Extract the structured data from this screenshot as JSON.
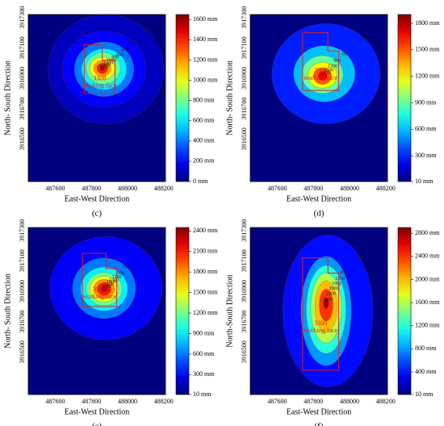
{
  "chart_data": [
    {
      "type": "contour",
      "panel_label": "(c)",
      "xlabel": "East-West Direction",
      "ylabel": "North- South Direction",
      "xlim": [
        487450,
        488210
      ],
      "ylim": [
        3916220,
        3917320
      ],
      "xticks": [
        487600,
        487800,
        488000,
        488200
      ],
      "yticks": [
        3916500,
        3916700,
        3916900,
        3917100,
        3917300
      ],
      "clim": [
        0,
        1650
      ],
      "cticks": [
        {
          "value": 0,
          "label": "0 mm"
        },
        {
          "value": 200,
          "label": "200 mm"
        },
        {
          "value": 400,
          "label": "400 mm"
        },
        {
          "value": 600,
          "label": "600 mm"
        },
        {
          "value": 800,
          "label": "800 mm"
        },
        {
          "value": 1000,
          "label": "1000 mm"
        },
        {
          "value": 1200,
          "label": "1200 mm"
        },
        {
          "value": 1400,
          "label": "1400 mm"
        },
        {
          "value": 1600,
          "label": "1600 mm"
        }
      ],
      "contours": [
        {
          "level": 100,
          "cx": 487880,
          "cy": 3916960,
          "rx": 320,
          "ry": 360
        },
        {
          "level": 200,
          "cx": 487870,
          "cy": 3916960,
          "rx": 230,
          "ry": 250
        },
        {
          "level": 400,
          "cx": 487870,
          "cy": 3916960,
          "rx": 165,
          "ry": 180
        },
        {
          "level": 600,
          "cx": 487870,
          "cy": 3916960,
          "rx": 125,
          "ry": 135
        },
        {
          "level": 800,
          "cx": 487865,
          "cy": 3916965,
          "rx": 95,
          "ry": 105
        },
        {
          "level": 1000,
          "cx": 487860,
          "cy": 3916965,
          "rx": 70,
          "ry": 75
        },
        {
          "level": 1200,
          "cx": 487860,
          "cy": 3916965,
          "rx": 48,
          "ry": 52
        },
        {
          "level": 1400,
          "cx": 487860,
          "cy": 3916965,
          "rx": 30,
          "ry": 34
        },
        {
          "level": 1600,
          "cx": 487860,
          "cy": 3916965,
          "rx": 13,
          "ry": 15
        }
      ],
      "working_face": {
        "label_lines": [
          "3308",
          "working face"
        ],
        "x": [
          487760,
          487860,
          487860,
          487930,
          487930,
          487760
        ],
        "y": [
          3917120,
          3917120,
          3917020,
          3917020,
          3916800,
          3916800
        ]
      }
    },
    {
      "type": "contour",
      "panel_label": "(d)",
      "xlabel": "East-West Direction",
      "ylabel": "North- South Direction",
      "xlim": [
        487450,
        488210
      ],
      "ylim": [
        3916220,
        3917320
      ],
      "xticks": [
        487600,
        487800,
        488000,
        488200
      ],
      "yticks": [
        3916500,
        3916700,
        3916900,
        3917100,
        3917300
      ],
      "clim": [
        10,
        1900
      ],
      "cticks": [
        {
          "value": 10,
          "label": "10 mm"
        },
        {
          "value": 300,
          "label": "300 mm"
        },
        {
          "value": 600,
          "label": "600 mm"
        },
        {
          "value": 900,
          "label": "900 mm"
        },
        {
          "value": 1200,
          "label": "1200 mm"
        },
        {
          "value": 1500,
          "label": "1500 mm"
        },
        {
          "value": 1800,
          "label": "1800 mm"
        }
      ],
      "contours": [
        {
          "level": 300,
          "cx": 487870,
          "cy": 3916930,
          "rx": 300,
          "ry": 330
        },
        {
          "level": 600,
          "cx": 487860,
          "cy": 3916930,
          "rx": 170,
          "ry": 185
        },
        {
          "level": 900,
          "cx": 487850,
          "cy": 3916925,
          "rx": 115,
          "ry": 125
        },
        {
          "level": 1200,
          "cx": 487850,
          "cy": 3916920,
          "rx": 80,
          "ry": 85
        },
        {
          "level": 1500,
          "cx": 487850,
          "cy": 3916915,
          "rx": 50,
          "ry": 55
        },
        {
          "level": 1700,
          "cx": 487850,
          "cy": 3916915,
          "rx": 25,
          "ry": 28
        }
      ],
      "working_face": {
        "label_lines": [
          "3308",
          "working face"
        ],
        "x": [
          487740,
          487880,
          487880,
          487940,
          487940,
          487740
        ],
        "y": [
          3917200,
          3917200,
          3917080,
          3917080,
          3916820,
          3916820
        ]
      }
    },
    {
      "type": "contour",
      "panel_label": "(e)",
      "xlabel": "East-West Direction",
      "ylabel": "North- South Direction",
      "xlim": [
        487450,
        488210
      ],
      "ylim": [
        3916220,
        3917320
      ],
      "xticks": [
        487600,
        487800,
        488000,
        488200
      ],
      "yticks": [
        3916500,
        3916700,
        3916900,
        3917100,
        3917300
      ],
      "clim": [
        10,
        2450
      ],
      "cticks": [
        {
          "value": 10,
          "label": "10 mm"
        },
        {
          "value": 300,
          "label": "300 mm"
        },
        {
          "value": 600,
          "label": "600 mm"
        },
        {
          "value": 900,
          "label": "900 mm"
        },
        {
          "value": 1200,
          "label": "1200 mm"
        },
        {
          "value": 1500,
          "label": "1500 mm"
        },
        {
          "value": 1800,
          "label": "1800 mm"
        },
        {
          "value": 2100,
          "label": "2100 mm"
        },
        {
          "value": 2400,
          "label": "2400 mm"
        }
      ],
      "contours": [
        {
          "level": 300,
          "cx": 487880,
          "cy": 3916920,
          "rx": 310,
          "ry": 340
        },
        {
          "level": 600,
          "cx": 487870,
          "cy": 3916920,
          "rx": 175,
          "ry": 200
        },
        {
          "level": 900,
          "cx": 487870,
          "cy": 3916915,
          "rx": 130,
          "ry": 145
        },
        {
          "level": 1200,
          "cx": 487870,
          "cy": 3916915,
          "rx": 100,
          "ry": 110
        },
        {
          "level": 1500,
          "cx": 487870,
          "cy": 3916915,
          "rx": 78,
          "ry": 85
        },
        {
          "level": 1800,
          "cx": 487870,
          "cy": 3916915,
          "rx": 58,
          "ry": 64
        },
        {
          "level": 2100,
          "cx": 487870,
          "cy": 3916915,
          "rx": 38,
          "ry": 42
        },
        {
          "level": 2400,
          "cx": 487870,
          "cy": 3916915,
          "rx": 16,
          "ry": 18
        }
      ],
      "working_face": {
        "label_lines": [
          "3308",
          "working face"
        ],
        "x": [
          487750,
          487880,
          487880,
          487940,
          487940,
          487750
        ],
        "y": [
          3917150,
          3917150,
          3917050,
          3917050,
          3916800,
          3916800
        ]
      }
    },
    {
      "type": "contour",
      "panel_label": "(f)",
      "xlabel": "East-West Direction",
      "ylabel": "North-South Direction",
      "xlim": [
        487450,
        488210
      ],
      "ylim": [
        3916220,
        3917320
      ],
      "xticks": [
        487600,
        487800,
        488000,
        488200
      ],
      "yticks": [
        3916500,
        3916700,
        3916900,
        3917100,
        3917300
      ],
      "clim": [
        10,
        2900
      ],
      "cticks": [
        {
          "value": 10,
          "label": "10 mm"
        },
        {
          "value": 400,
          "label": "400 mm"
        },
        {
          "value": 800,
          "label": "800 mm"
        },
        {
          "value": 1200,
          "label": "1200 mm"
        },
        {
          "value": 1600,
          "label": "1600 mm"
        },
        {
          "value": 2000,
          "label": "2000 mm"
        },
        {
          "value": 2400,
          "label": "2400 mm"
        },
        {
          "value": 2800,
          "label": "2800 mm"
        }
      ],
      "contours": [
        {
          "level": 400,
          "cx": 487880,
          "cy": 3916770,
          "rx": 250,
          "ry": 500
        },
        {
          "level": 800,
          "cx": 487870,
          "cy": 3916770,
          "rx": 140,
          "ry": 360
        },
        {
          "level": 1200,
          "cx": 487870,
          "cy": 3916780,
          "rx": 110,
          "ry": 290
        },
        {
          "level": 1600,
          "cx": 487870,
          "cy": 3916790,
          "rx": 85,
          "ry": 230
        },
        {
          "level": 2000,
          "cx": 487870,
          "cy": 3916800,
          "rx": 62,
          "ry": 170
        },
        {
          "level": 2400,
          "cx": 487870,
          "cy": 3916810,
          "rx": 38,
          "ry": 105
        },
        {
          "level": 2800,
          "cx": 487870,
          "cy": 3916820,
          "rx": 14,
          "ry": 35
        }
      ],
      "working_face": {
        "label_lines": [
          "3308",
          "working face"
        ],
        "x": [
          487740,
          487880,
          487880,
          487940,
          487940,
          487740
        ],
        "y": [
          3917120,
          3917120,
          3917020,
          3917020,
          3916380,
          3916380
        ]
      }
    }
  ]
}
